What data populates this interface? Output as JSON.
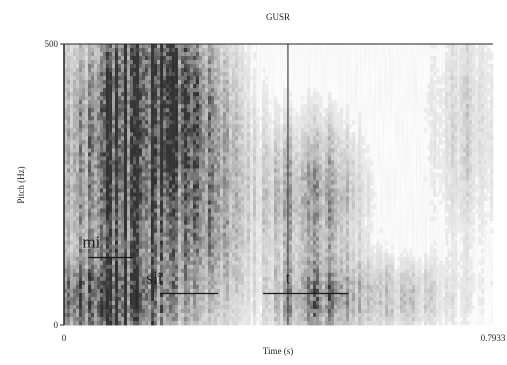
{
  "chart_data": {
    "type": "heatmap",
    "title": "GUSR",
    "xlabel": "Time (s)",
    "ylabel": "Pitch (Hz)",
    "xlim": [
      0,
      0.7933
    ],
    "ylim": [
      0,
      500
    ],
    "x_tick_labels": [
      "0",
      "0.7933"
    ],
    "y_tick_labels": [
      "0",
      "500"
    ],
    "grid": false,
    "colormap": "grayscale (dark = high energy)",
    "annotations": [
      {
        "label": "mi",
        "x_start": 0.045,
        "x_end": 0.128,
        "y": 120
      },
      {
        "label": "sli",
        "x_start": 0.178,
        "x_end": 0.285,
        "y": 56
      },
      {
        "label": "t",
        "x_start": 0.368,
        "x_end": 0.526,
        "y": 56
      }
    ]
  },
  "colors": {
    "axis": "#222222",
    "annotation_line": "#1a1a1a",
    "text": "#1f1f1f"
  }
}
